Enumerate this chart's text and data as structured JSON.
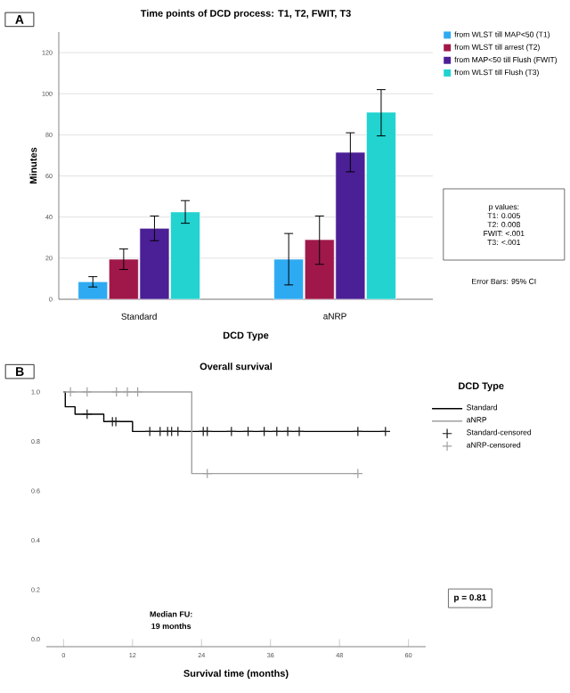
{
  "chart_data": [
    {
      "type": "bar",
      "title": "Time points of DCD process: T1, T2, FWIT, T3",
      "xlabel": "DCD Type",
      "ylabel": "Minutes",
      "categories": [
        "Standard",
        "aNRP"
      ],
      "series": [
        {
          "name": "from WLST till MAP<50 (T1)",
          "color": "#2eaaf2",
          "values": [
            8.5,
            19.5
          ],
          "errors": [
            [
              6,
              11
            ],
            [
              7,
              32
            ]
          ]
        },
        {
          "name": "from WLST till arrest (T2)",
          "color": "#a0184a",
          "values": [
            19.5,
            29
          ],
          "errors": [
            [
              14.5,
              24.5
            ],
            [
              17,
              40.5
            ]
          ]
        },
        {
          "name": "from MAP<50 till Flush (FWIT)",
          "color": "#4b1f96",
          "values": [
            34.5,
            71.5
          ],
          "errors": [
            [
              28.5,
              40.5
            ],
            [
              62,
              81
            ]
          ]
        },
        {
          "name": "from WLST till Flush (T3)",
          "color": "#22d3d0",
          "values": [
            42.5,
            91
          ],
          "errors": [
            [
              37,
              48
            ],
            [
              79.5,
              102
            ]
          ]
        }
      ],
      "ylim": [
        0,
        130
      ],
      "yticks": [
        0,
        20,
        40,
        60,
        80,
        100,
        120
      ],
      "grid": "y",
      "legend": "top right",
      "annotations": [
        "A",
        "p values:",
        "T1: 0.005",
        "T2: 0.008",
        "FWIT: <.001",
        "T3: <.001",
        "Error Bars: 95% CI"
      ]
    },
    {
      "type": "step",
      "title": "Overall survival",
      "xlabel": "Survival time (months)",
      "legend_title": "DCD Type",
      "series": [
        {
          "name": "Standard",
          "color": "#000000",
          "x": [
            0,
            0.3,
            2,
            7,
            12,
            56
          ],
          "values": [
            1,
            0.94,
            0.91,
            0.88,
            0.84,
            0.84
          ]
        },
        {
          "name": "aNRP",
          "color": "#a0a0a0",
          "x": [
            0,
            22.3,
            51.2
          ],
          "values": [
            1,
            0.67,
            0.67
          ]
        },
        {
          "name": "Standard-censored",
          "type": "scatter",
          "marker": "cross",
          "color": "#1a1a1a",
          "x": [
            4.1,
            8.5,
            9.1,
            15,
            16.8,
            18.1,
            18.8,
            19.9,
            24.3,
            25,
            29.2,
            32.1,
            34.9,
            37.1,
            39,
            41,
            51.2,
            56
          ],
          "values": [
            0.91,
            0.88,
            0.88,
            0.84,
            0.84,
            0.84,
            0.84,
            0.84,
            0.84,
            0.84,
            0.84,
            0.84,
            0.84,
            0.84,
            0.84,
            0.84,
            0.84,
            0.84
          ]
        },
        {
          "name": "aNRP-censored",
          "type": "scatter",
          "marker": "cross",
          "color": "#a0a0a0",
          "x": [
            1.2,
            4.1,
            9.2,
            11.1,
            12.9,
            25,
            51.2
          ],
          "values": [
            1,
            1,
            1,
            1,
            1,
            0.67,
            0.67
          ]
        }
      ],
      "xlim": [
        -3,
        63
      ],
      "xticks": [
        0,
        12,
        24,
        36,
        48,
        60
      ],
      "ylim": [
        -0.03,
        1
      ],
      "yticks": [
        {
          "value": 0,
          "label": "0.0"
        },
        {
          "value": 0.2,
          "label": "0.2"
        },
        {
          "value": 0.4,
          "label": "0.4"
        },
        {
          "value": 0.6,
          "label": "0.6"
        },
        {
          "value": 0.8,
          "label": "0.8"
        },
        {
          "value": 1,
          "label": "1.0"
        }
      ],
      "legend": "right",
      "annotations": [
        "B",
        "Median FU:",
        "19 months",
        "p = 0.81"
      ]
    }
  ]
}
